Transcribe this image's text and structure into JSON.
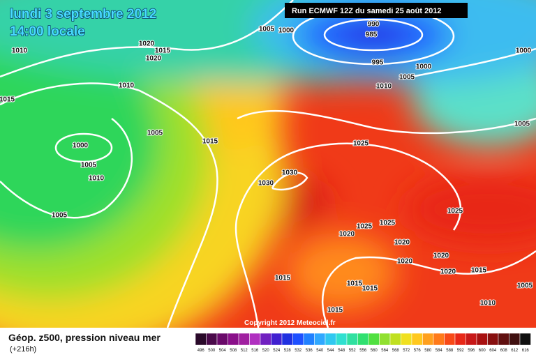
{
  "header": {
    "date": "lundi 3 septembre 2012",
    "time": "14:00 locale",
    "run": "Run ECMWF 12Z du samedi 25 août 2012"
  },
  "copyright": "Copyright 2012 Meteociel.fr",
  "legend": {
    "title": "Géop. z500, pression niveau mer",
    "subtitle": "(+216h)",
    "scale": [
      496,
      500,
      504,
      508,
      512,
      516,
      520,
      524,
      528,
      532,
      536,
      540,
      544,
      548,
      552,
      556,
      560,
      564,
      568,
      572,
      576,
      580,
      584,
      588,
      592,
      596,
      600,
      604,
      608,
      612,
      616
    ]
  },
  "isobars": [
    "1005",
    "1000",
    "990",
    "985",
    "995",
    "1000",
    "1005",
    "1010",
    "1000",
    "1010",
    "1020",
    "1015",
    "1020",
    "1010",
    "1015",
    "1005",
    "1000",
    "1005",
    "1010",
    "1015",
    "1025",
    "1030",
    "1030",
    "1005",
    "1025",
    "1025",
    "1025",
    "1020",
    "1020",
    "1020",
    "1020",
    "1020",
    "1015",
    "1005",
    "1015",
    "1015",
    "1015",
    "1010",
    "1015",
    "1005"
  ]
}
